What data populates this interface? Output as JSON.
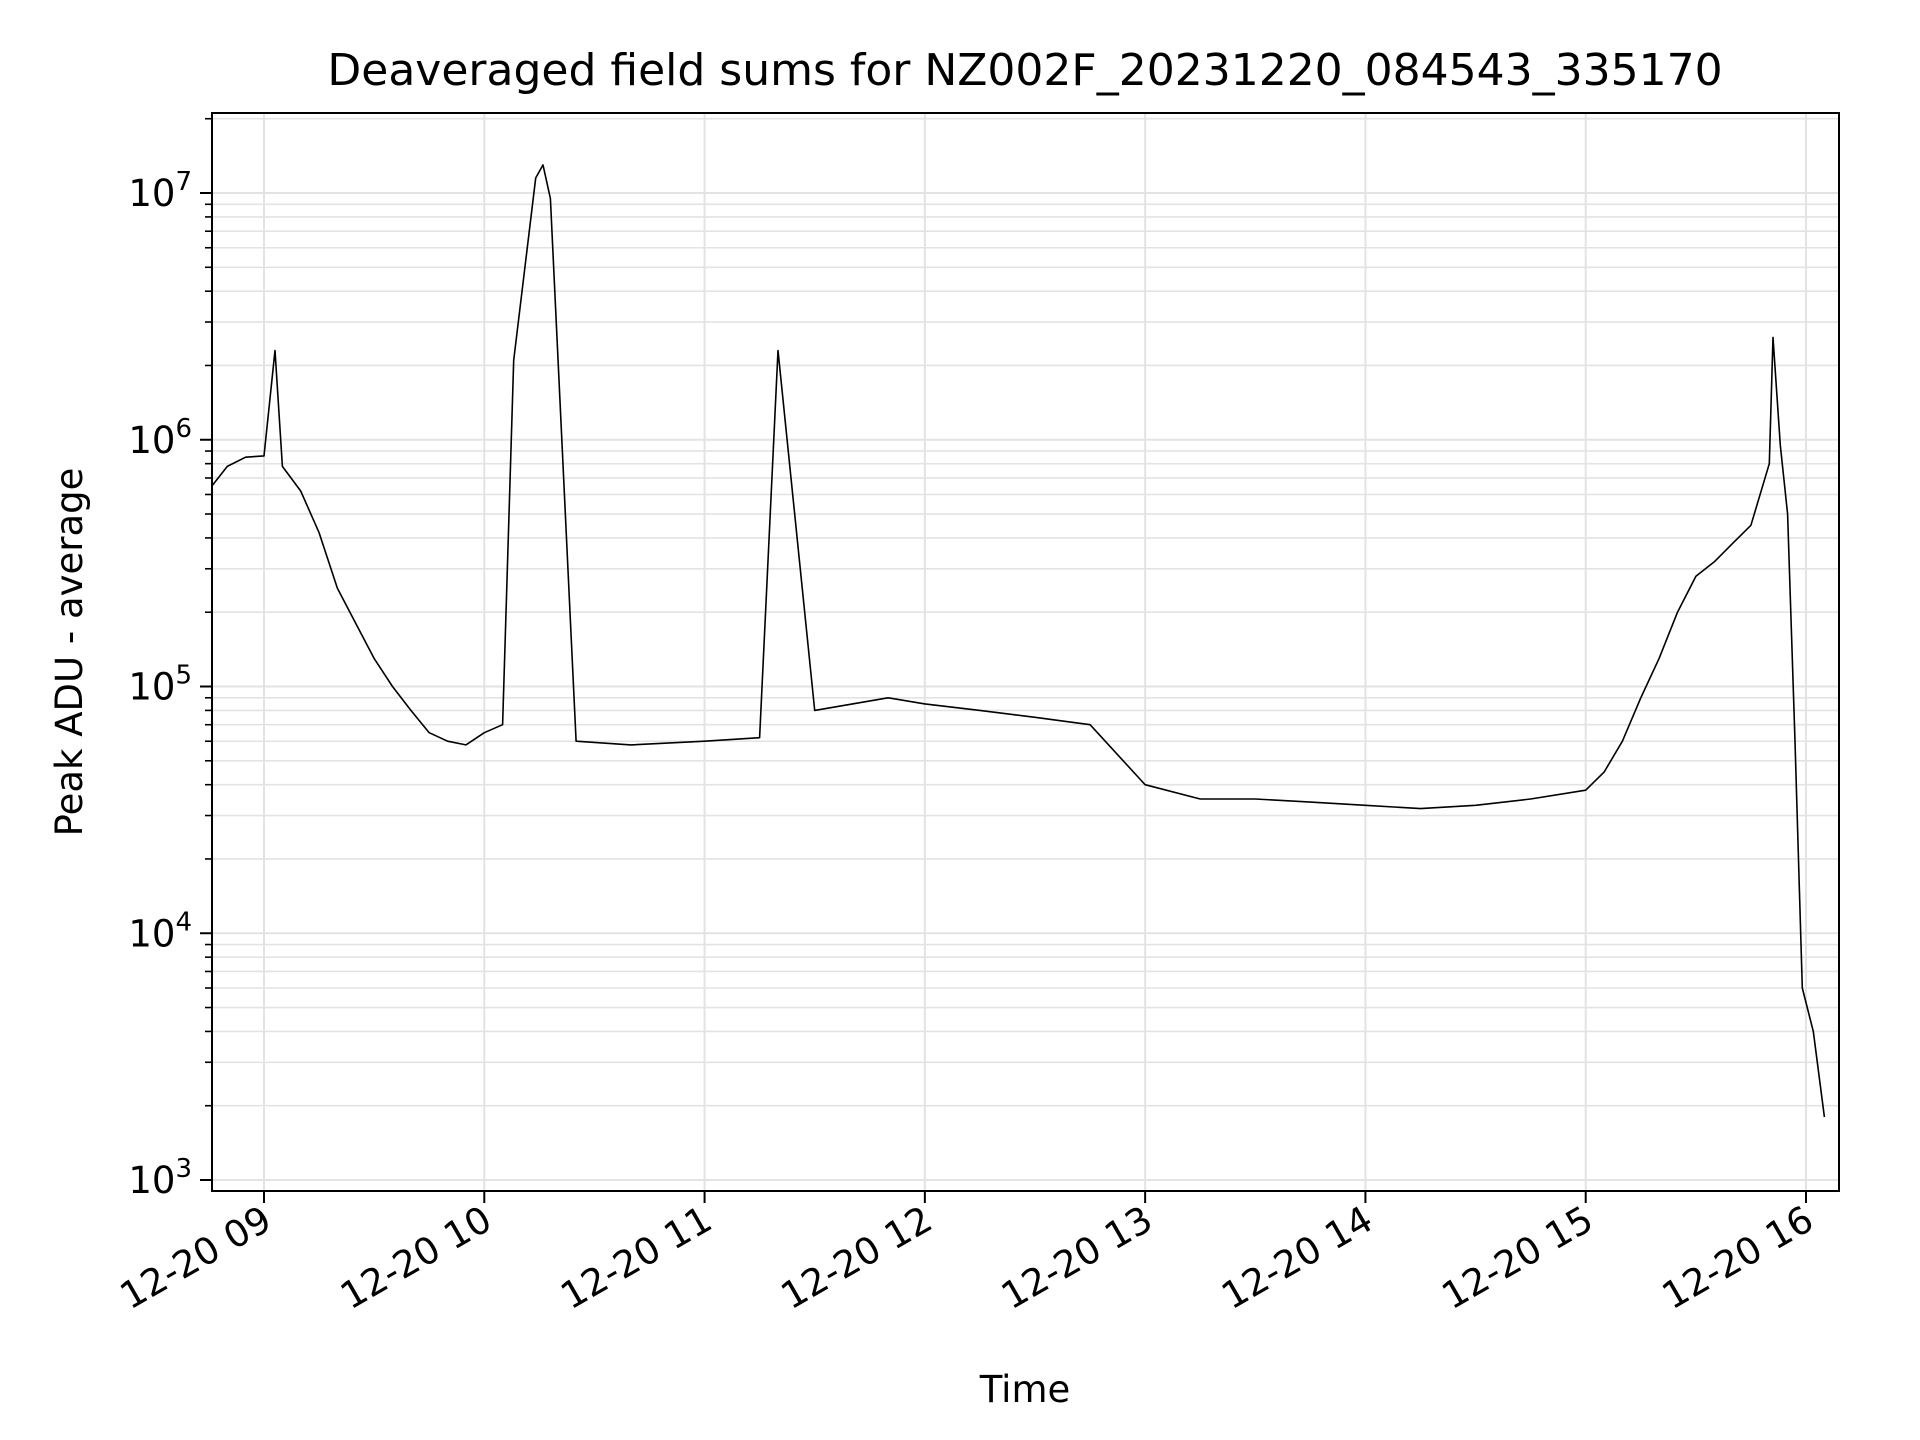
{
  "chart_data": {
    "type": "line",
    "title": "Deaveraged field sums for NZ002F_20231220_084543_335170",
    "xlabel": "Time",
    "ylabel": "Peak ADU - average",
    "yscale": "log",
    "ylim": [
      900,
      20000000
    ],
    "xlim": [
      "2023-12-20 08:45:43",
      "2023-12-20 16:00:00"
    ],
    "grid": true,
    "line_color": "#000000",
    "x_ticks": [
      {
        "t": "2023-12-20 09:00",
        "label": "12-20 09"
      },
      {
        "t": "2023-12-20 10:00",
        "label": "12-20 10"
      },
      {
        "t": "2023-12-20 11:00",
        "label": "12-20 11"
      },
      {
        "t": "2023-12-20 12:00",
        "label": "12-20 12"
      },
      {
        "t": "2023-12-20 13:00",
        "label": "12-20 13"
      },
      {
        "t": "2023-12-20 14:00",
        "label": "12-20 14"
      },
      {
        "t": "2023-12-20 15:00",
        "label": "12-20 15"
      },
      {
        "t": "2023-12-20 16:00",
        "label": "12-20 16"
      }
    ],
    "y_ticks": [
      {
        "value": 1000,
        "base": "10",
        "exp": "3"
      },
      {
        "value": 10000,
        "base": "10",
        "exp": "4"
      },
      {
        "value": 100000,
        "base": "10",
        "exp": "5"
      },
      {
        "value": 1000000,
        "base": "10",
        "exp": "6"
      },
      {
        "value": 10000000,
        "base": "10",
        "exp": "7"
      }
    ],
    "series": [
      {
        "values": [
          [
            "2023-12-20 08:45",
            650000
          ],
          [
            "2023-12-20 08:50",
            780000
          ],
          [
            "2023-12-20 08:55",
            850000
          ],
          [
            "2023-12-20 09:00",
            860000
          ],
          [
            "2023-12-20 09:03",
            2300000
          ],
          [
            "2023-12-20 09:05",
            780000
          ],
          [
            "2023-12-20 09:10",
            620000
          ],
          [
            "2023-12-20 09:15",
            420000
          ],
          [
            "2023-12-20 09:20",
            250000
          ],
          [
            "2023-12-20 09:25",
            180000
          ],
          [
            "2023-12-20 09:30",
            130000
          ],
          [
            "2023-12-20 09:35",
            100000
          ],
          [
            "2023-12-20 09:40",
            80000
          ],
          [
            "2023-12-20 09:45",
            65000
          ],
          [
            "2023-12-20 09:50",
            60000
          ],
          [
            "2023-12-20 09:55",
            58000
          ],
          [
            "2023-12-20 10:00",
            65000
          ],
          [
            "2023-12-20 10:05",
            70000
          ],
          [
            "2023-12-20 10:08",
            2100000
          ],
          [
            "2023-12-20 10:14",
            11500000
          ],
          [
            "2023-12-20 10:16",
            13000000
          ],
          [
            "2023-12-20 10:18",
            9500000
          ],
          [
            "2023-12-20 10:25",
            60000
          ],
          [
            "2023-12-20 10:40",
            58000
          ],
          [
            "2023-12-20 11:00",
            60000
          ],
          [
            "2023-12-20 11:15",
            62000
          ],
          [
            "2023-12-20 11:20",
            2300000
          ],
          [
            "2023-12-20 11:30",
            80000
          ],
          [
            "2023-12-20 11:50",
            90000
          ],
          [
            "2023-12-20 12:00",
            85000
          ],
          [
            "2023-12-20 12:15",
            80000
          ],
          [
            "2023-12-20 12:30",
            75000
          ],
          [
            "2023-12-20 12:45",
            70000
          ],
          [
            "2023-12-20 13:00",
            40000
          ],
          [
            "2023-12-20 13:15",
            35000
          ],
          [
            "2023-12-20 13:30",
            35000
          ],
          [
            "2023-12-20 13:45",
            34000
          ],
          [
            "2023-12-20 14:00",
            33000
          ],
          [
            "2023-12-20 14:15",
            32000
          ],
          [
            "2023-12-20 14:30",
            33000
          ],
          [
            "2023-12-20 14:45",
            35000
          ],
          [
            "2023-12-20 15:00",
            38000
          ],
          [
            "2023-12-20 15:05",
            45000
          ],
          [
            "2023-12-20 15:10",
            60000
          ],
          [
            "2023-12-20 15:15",
            90000
          ],
          [
            "2023-12-20 15:20",
            130000
          ],
          [
            "2023-12-20 15:25",
            200000
          ],
          [
            "2023-12-20 15:30",
            280000
          ],
          [
            "2023-12-20 15:35",
            320000
          ],
          [
            "2023-12-20 15:40",
            380000
          ],
          [
            "2023-12-20 15:45",
            450000
          ],
          [
            "2023-12-20 15:50",
            800000
          ],
          [
            "2023-12-20 15:51",
            2600000
          ],
          [
            "2023-12-20 15:53",
            950000
          ],
          [
            "2023-12-20 15:55",
            500000
          ],
          [
            "2023-12-20 15:57",
            60000
          ],
          [
            "2023-12-20 15:59",
            6000
          ],
          [
            "2023-12-20 16:02",
            4000
          ],
          [
            "2023-12-20 16:05",
            1800
          ]
        ]
      }
    ]
  }
}
